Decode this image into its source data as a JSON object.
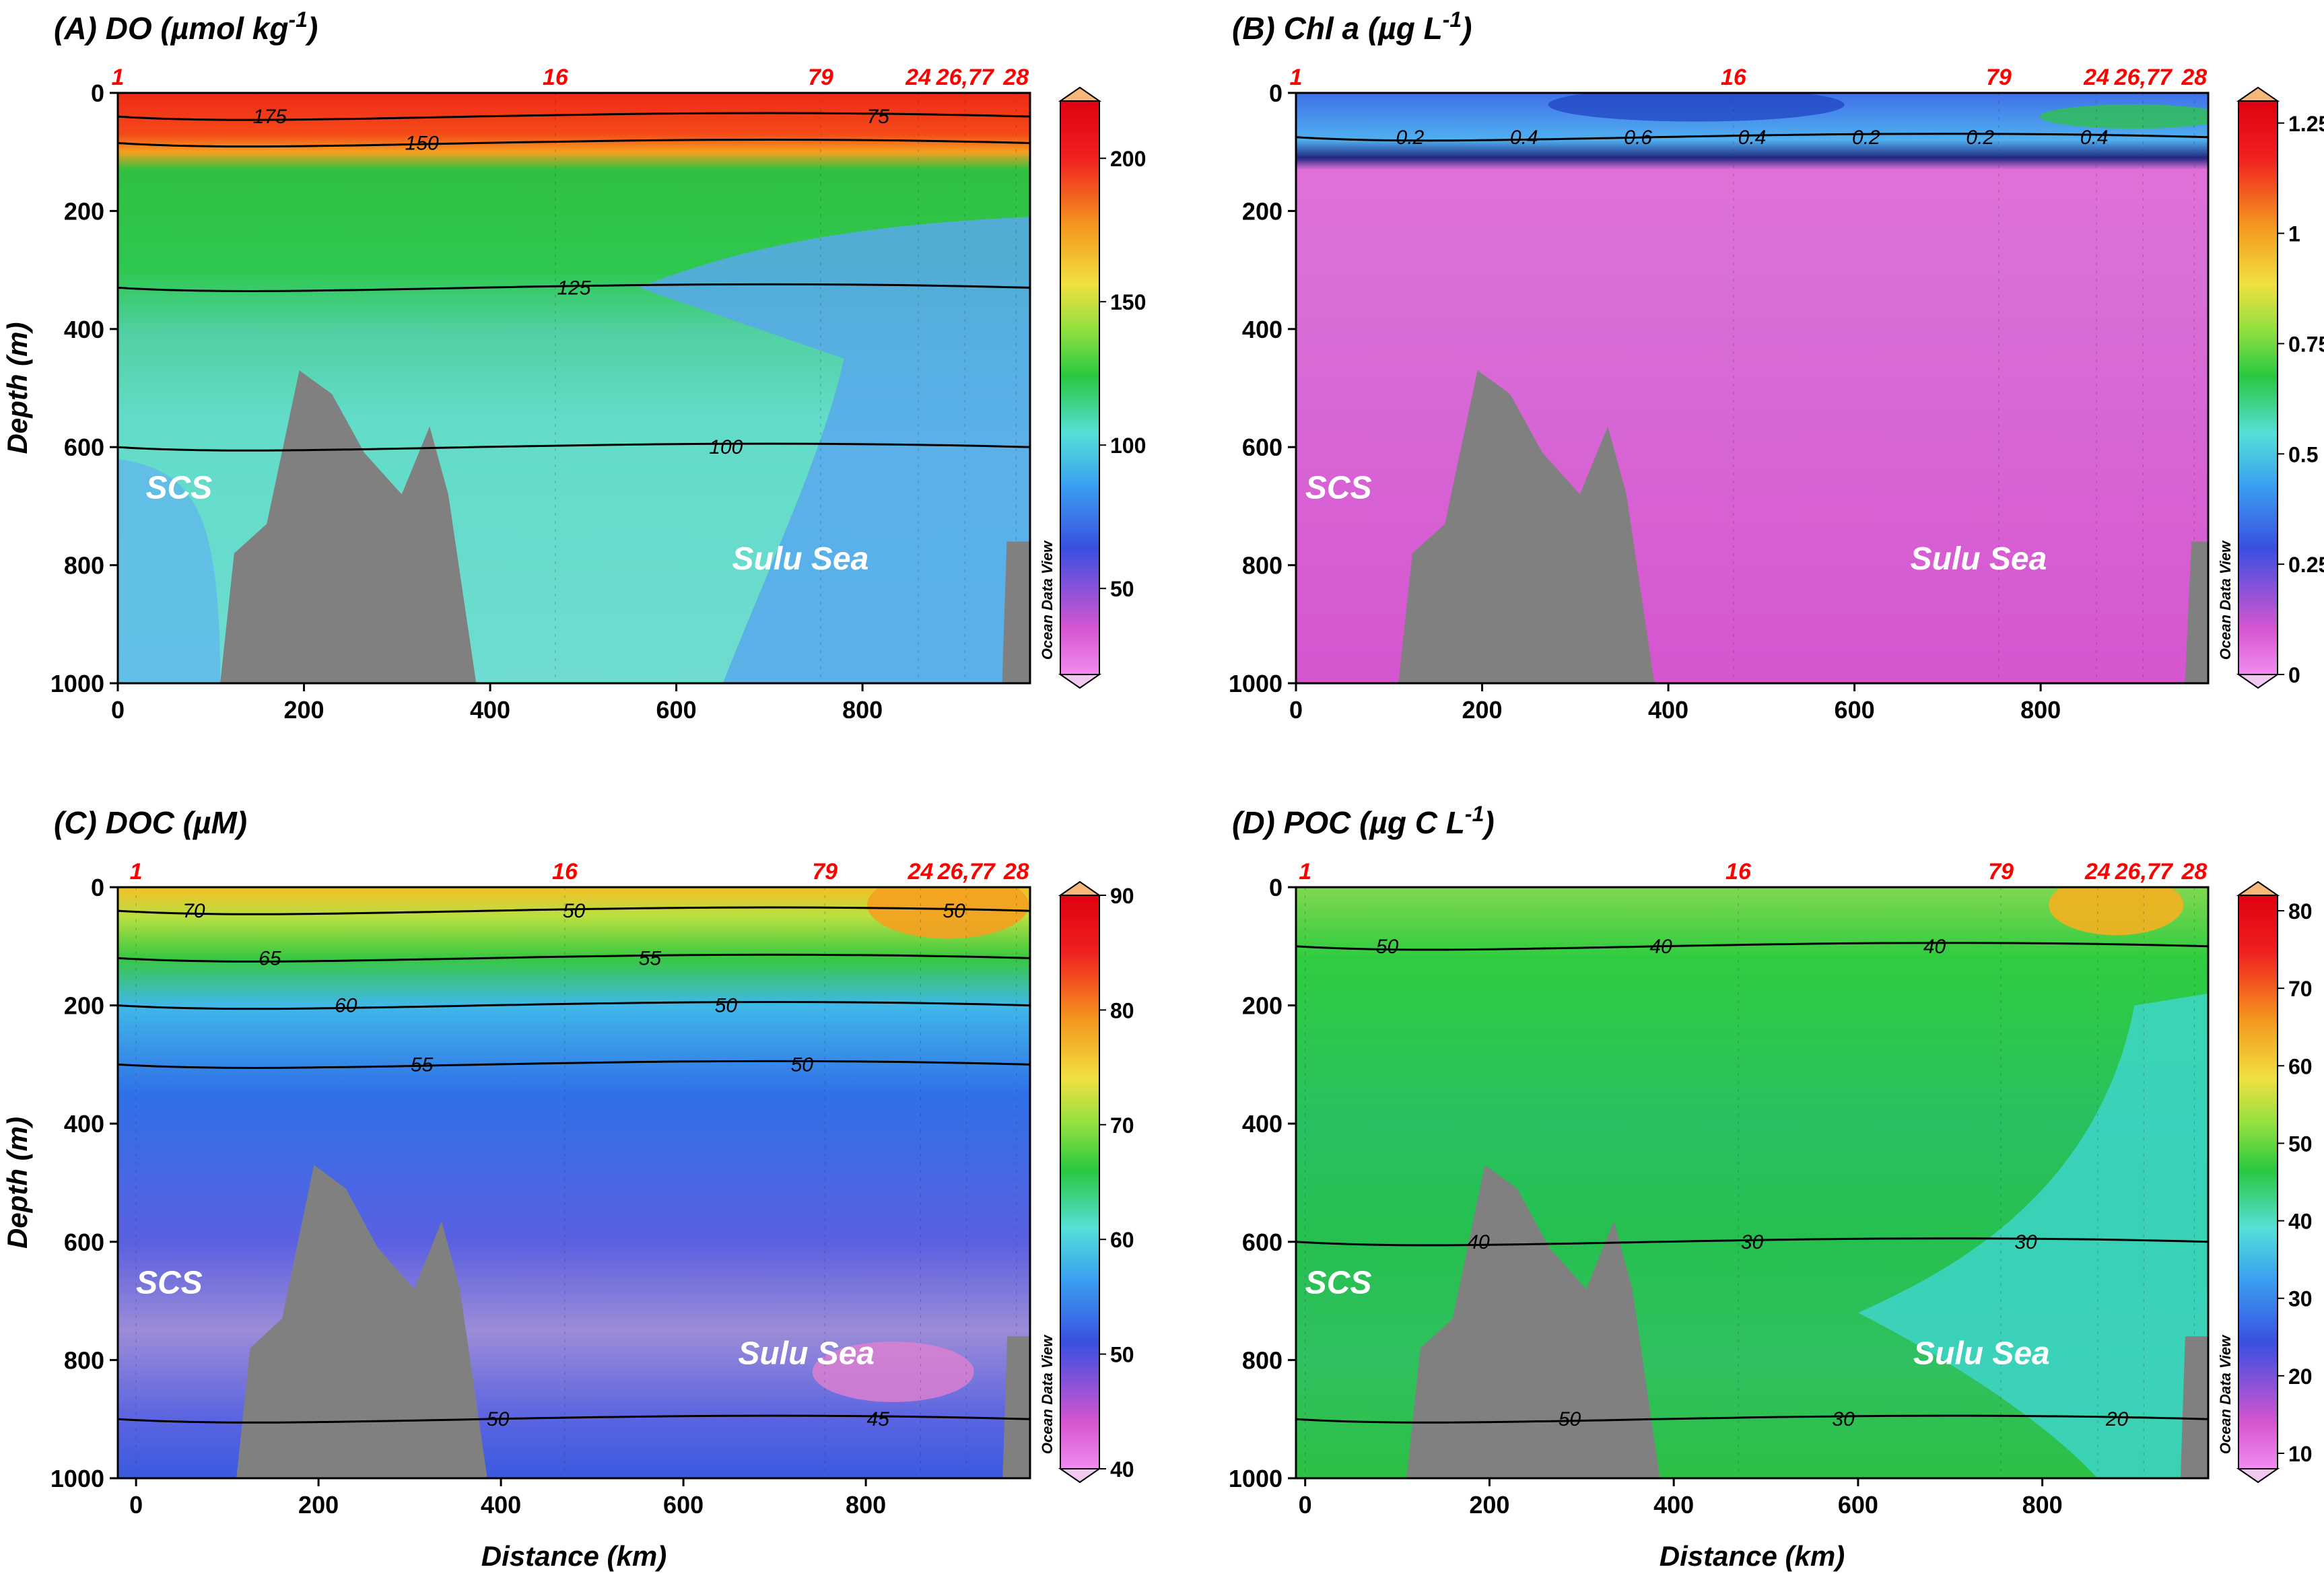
{
  "figure": {
    "axis_labels": {
      "depth": "Depth (m)",
      "distance": "Distance (km)"
    },
    "watermark": "Ocean Data View",
    "colors": {
      "title": "#000000",
      "station": "#ff0000",
      "land": "#808080",
      "region_label": "#ffffff",
      "contour": "#000000",
      "colormap": [
        "#f08cf0",
        "#d655d0",
        "#3a4fe0",
        "#3aa0f0",
        "#55e0d8",
        "#28c840",
        "#90e040",
        "#f0e040",
        "#f59a20",
        "#f02020",
        "#e00010"
      ]
    }
  },
  "chart_data": [
    {
      "id": "A",
      "type": "heatmap",
      "title": "(A) DO (µmol kg",
      "title_sup": "-1",
      "title_end": ")",
      "ylabel": "Depth (m)",
      "xlabel": "",
      "xlim": [
        0,
        980
      ],
      "ylim": [
        1000,
        0
      ],
      "x_ticks": [
        "0",
        "200",
        "400",
        "600",
        "800"
      ],
      "y_ticks": [
        "0",
        "200",
        "400",
        "600",
        "800",
        "1000"
      ],
      "colorbar": {
        "ticks": [
          "50",
          "100",
          "150",
          "200"
        ],
        "range": [
          20,
          220
        ]
      },
      "stations": [
        {
          "label": "1",
          "x": 0
        },
        {
          "label": "16",
          "x": 470
        },
        {
          "label": "79",
          "x": 755
        },
        {
          "label": "24",
          "x": 860
        },
        {
          "label": "26,77",
          "x": 910
        },
        {
          "label": "28",
          "x": 965
        }
      ],
      "region_labels": [
        {
          "text": "SCS",
          "x": 30,
          "y": 670
        },
        {
          "text": "Sulu Sea",
          "x": 660,
          "y": 790
        }
      ],
      "bathymetry": [
        [
          110,
          1000
        ],
        [
          125,
          780
        ],
        [
          160,
          730
        ],
        [
          195,
          470
        ],
        [
          230,
          510
        ],
        [
          265,
          610
        ],
        [
          305,
          680
        ],
        [
          335,
          565
        ],
        [
          355,
          680
        ],
        [
          385,
          1000
        ]
      ],
      "bathymetry_right": [
        [
          950,
          1000
        ],
        [
          955,
          760
        ],
        [
          980,
          760
        ],
        [
          980,
          1000
        ]
      ],
      "contour_levels": [
        "175",
        "150",
        "125",
        "100",
        "75"
      ],
      "sections": [
        {
          "depth_range": [
            0,
            60
          ],
          "value": 200
        },
        {
          "depth_range": [
            60,
            90
          ],
          "value": 160
        },
        {
          "depth_range": [
            90,
            330
          ],
          "value": 105
        },
        {
          "depth_range": [
            330,
            1000
          ],
          "value": 80
        },
        {
          "region": "sulu_east",
          "value": 65
        }
      ]
    },
    {
      "id": "B",
      "type": "heatmap",
      "title": "(B) Chl a (µg L",
      "title_sup": "-1",
      "title_end": ")",
      "ylabel": "",
      "xlabel": "",
      "xlim": [
        0,
        980
      ],
      "ylim": [
        1000,
        0
      ],
      "x_ticks": [
        "0",
        "200",
        "400",
        "600",
        "800"
      ],
      "y_ticks": [
        "0",
        "200",
        "400",
        "600",
        "800",
        "1000"
      ],
      "colorbar": {
        "ticks": [
          "0",
          "0.25",
          "0.5",
          "0.75",
          "1",
          "1.25"
        ],
        "range": [
          0,
          1.3
        ]
      },
      "stations": [
        {
          "label": "1",
          "x": 0
        },
        {
          "label": "16",
          "x": 470
        },
        {
          "label": "79",
          "x": 755
        },
        {
          "label": "24",
          "x": 860
        },
        {
          "label": "26,77",
          "x": 910
        },
        {
          "label": "28",
          "x": 965
        }
      ],
      "region_labels": [
        {
          "text": "SCS",
          "x": 10,
          "y": 670
        },
        {
          "text": "Sulu Sea",
          "x": 660,
          "y": 790
        }
      ],
      "bathymetry": [
        [
          110,
          1000
        ],
        [
          125,
          780
        ],
        [
          160,
          730
        ],
        [
          195,
          470
        ],
        [
          230,
          510
        ],
        [
          265,
          610
        ],
        [
          305,
          680
        ],
        [
          335,
          565
        ],
        [
          355,
          680
        ],
        [
          385,
          1000
        ]
      ],
      "bathymetry_right": [
        [
          955,
          1000
        ],
        [
          962,
          760
        ],
        [
          980,
          760
        ],
        [
          980,
          1000
        ]
      ],
      "contour_levels": [
        "0.2",
        "0.4",
        "0.6",
        "0.4",
        "0.2",
        "0.2",
        "0.4"
      ],
      "sections": [
        {
          "depth_range": [
            0,
            75
          ],
          "value": 0.3
        },
        {
          "depth_range": [
            75,
            1000
          ],
          "value": 0.05
        }
      ]
    },
    {
      "id": "C",
      "type": "heatmap",
      "title": "(C) DOC (µM)",
      "title_sup": "",
      "title_end": "",
      "ylabel": "Depth (m)",
      "xlabel": "Distance (km)",
      "xlim": [
        -20,
        980
      ],
      "ylim": [
        1000,
        0
      ],
      "x_ticks": [
        "0",
        "200",
        "400",
        "600",
        "800"
      ],
      "y_ticks": [
        "0",
        "200",
        "400",
        "600",
        "800",
        "1000"
      ],
      "colorbar": {
        "ticks": [
          "40",
          "50",
          "60",
          "70",
          "80",
          "90"
        ],
        "range": [
          40,
          90
        ]
      },
      "stations": [
        {
          "label": "1",
          "x": 0
        },
        {
          "label": "16",
          "x": 470
        },
        {
          "label": "79",
          "x": 755
        },
        {
          "label": "24",
          "x": 860
        },
        {
          "label": "26,77",
          "x": 910
        },
        {
          "label": "28",
          "x": 965
        }
      ],
      "region_labels": [
        {
          "text": "SCS",
          "x": 0,
          "y": 670
        },
        {
          "text": "Sulu Sea",
          "x": 660,
          "y": 790
        }
      ],
      "bathymetry": [
        [
          110,
          1000
        ],
        [
          125,
          780
        ],
        [
          160,
          730
        ],
        [
          195,
          470
        ],
        [
          230,
          510
        ],
        [
          265,
          610
        ],
        [
          305,
          680
        ],
        [
          335,
          565
        ],
        [
          355,
          680
        ],
        [
          385,
          1000
        ]
      ],
      "bathymetry_right": [
        [
          950,
          1000
        ],
        [
          955,
          760
        ],
        [
          980,
          760
        ],
        [
          980,
          1000
        ]
      ],
      "contour_levels": [
        "70",
        "65",
        "60",
        "55",
        "50",
        "50",
        "55",
        "50",
        "50",
        "45",
        "50"
      ],
      "sections": [
        {
          "depth_range": [
            0,
            60
          ],
          "value": 72
        },
        {
          "depth_range": [
            60,
            150
          ],
          "value": 62
        },
        {
          "depth_range": [
            150,
            300
          ],
          "value": 54
        },
        {
          "depth_range": [
            300,
            650
          ],
          "value": 49
        },
        {
          "depth_range": [
            650,
            900
          ],
          "value": 46
        },
        {
          "depth_range": [
            900,
            1000
          ],
          "value": 50
        }
      ]
    },
    {
      "id": "D",
      "type": "heatmap",
      "title": "(D) POC (µg C L",
      "title_sup": "-1",
      "title_end": ")",
      "ylabel": "",
      "xlabel": "Distance (km)",
      "xlim": [
        -10,
        980
      ],
      "ylim": [
        1000,
        0
      ],
      "x_ticks": [
        "0",
        "200",
        "400",
        "600",
        "800"
      ],
      "y_ticks": [
        "0",
        "200",
        "400",
        "600",
        "800",
        "1000"
      ],
      "colorbar": {
        "ticks": [
          "10",
          "20",
          "30",
          "40",
          "50",
          "60",
          "70",
          "80"
        ],
        "range": [
          8,
          82
        ]
      },
      "stations": [
        {
          "label": "1",
          "x": 0
        },
        {
          "label": "16",
          "x": 470
        },
        {
          "label": "79",
          "x": 755
        },
        {
          "label": "24",
          "x": 860
        },
        {
          "label": "26,77",
          "x": 910
        },
        {
          "label": "28",
          "x": 965
        }
      ],
      "region_labels": [
        {
          "text": "SCS",
          "x": 0,
          "y": 670
        },
        {
          "text": "Sulu Sea",
          "x": 660,
          "y": 790
        }
      ],
      "bathymetry": [
        [
          110,
          1000
        ],
        [
          125,
          780
        ],
        [
          160,
          730
        ],
        [
          195,
          470
        ],
        [
          230,
          510
        ],
        [
          265,
          610
        ],
        [
          305,
          680
        ],
        [
          335,
          565
        ],
        [
          355,
          680
        ],
        [
          385,
          1000
        ]
      ],
      "bathymetry_right": [
        [
          950,
          1000
        ],
        [
          955,
          760
        ],
        [
          980,
          760
        ],
        [
          980,
          1000
        ]
      ],
      "contour_levels": [
        "50",
        "40",
        "50",
        "40",
        "30",
        "30",
        "40",
        "30",
        "20"
      ],
      "sections": [
        {
          "depth_range": [
            0,
            120
          ],
          "value": 48
        },
        {
          "depth_range": [
            120,
            1000
          ],
          "value": 38
        },
        {
          "region": "sulu_east",
          "value": 30
        }
      ]
    }
  ]
}
